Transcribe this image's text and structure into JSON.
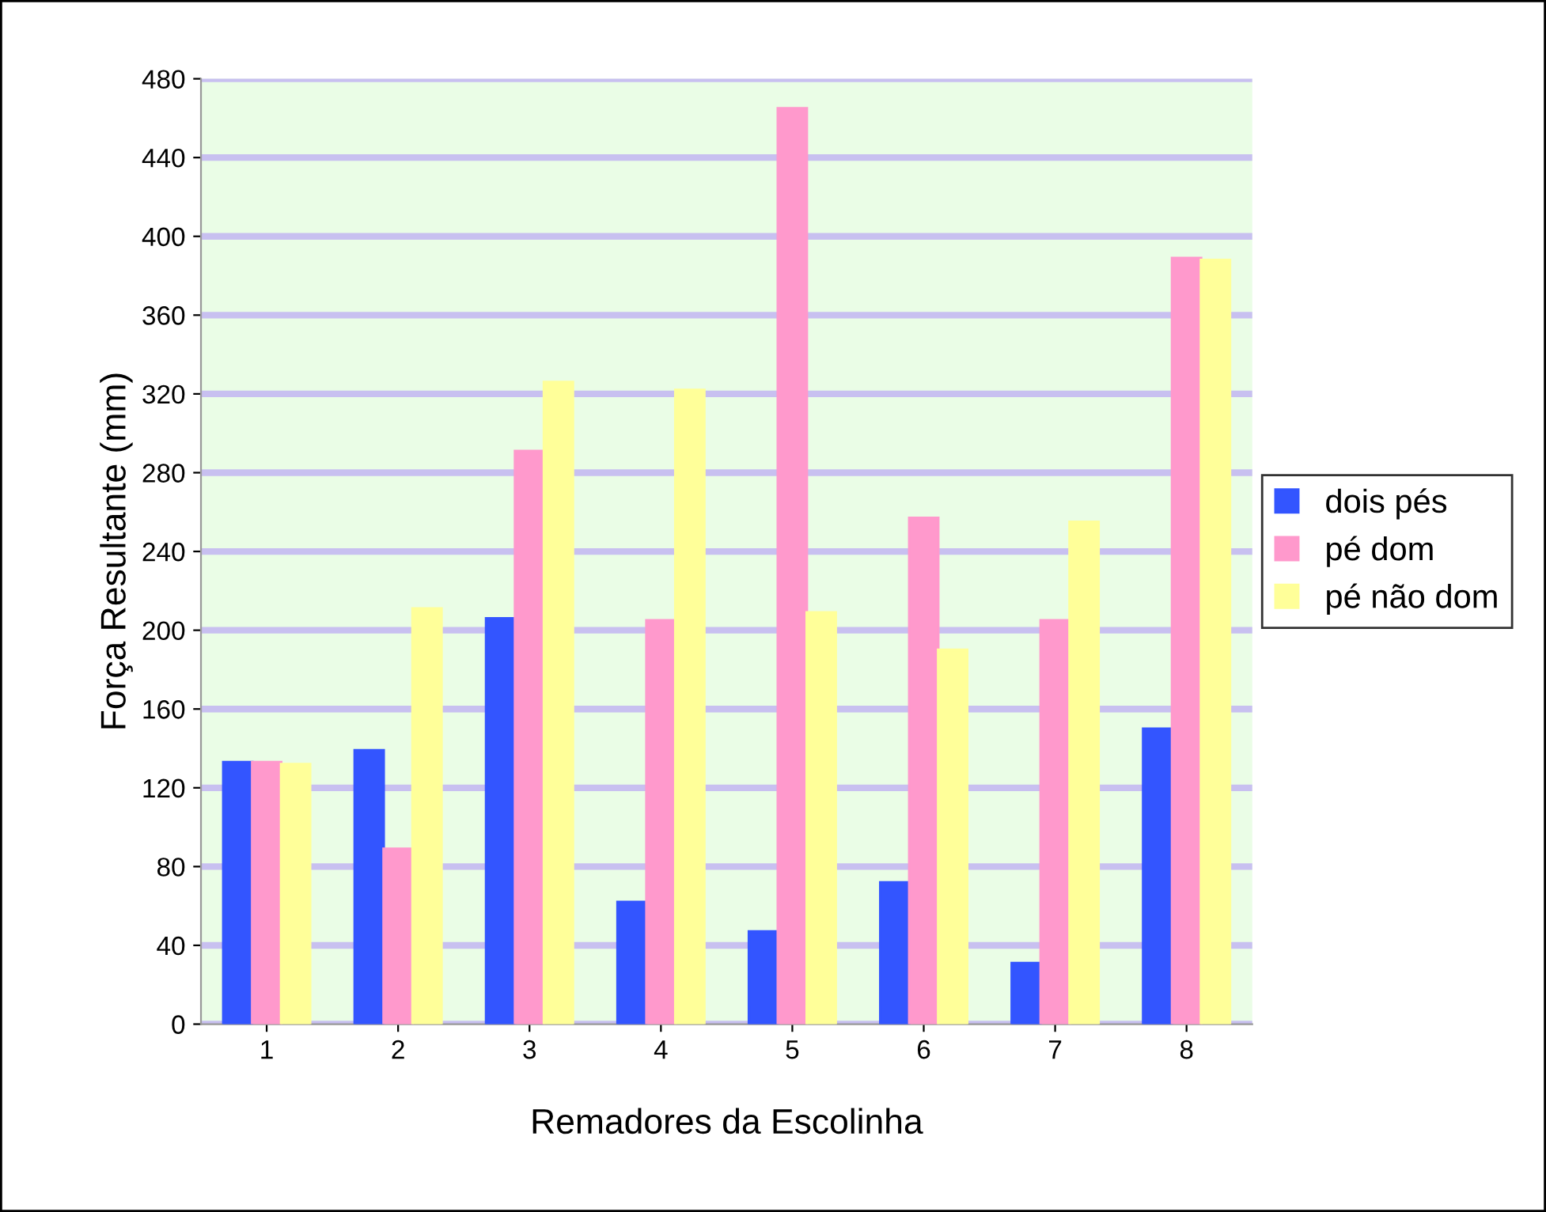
{
  "chart_data": {
    "type": "bar",
    "xlabel": "Remadores da Escolinha",
    "ylabel": "Força Resultante (mm)",
    "categories": [
      "1",
      "2",
      "3",
      "4",
      "5",
      "6",
      "7",
      "8"
    ],
    "series": [
      {
        "name": "dois pés",
        "color": "#3355ff",
        "values": [
          133,
          139,
          206,
          62,
          47,
          72,
          31,
          150
        ]
      },
      {
        "name": "pé dom",
        "color": "#ff99cc",
        "values": [
          133,
          89,
          291,
          205,
          465,
          257,
          205,
          389
        ]
      },
      {
        "name": "pé não dom",
        "color": "#ffff99",
        "values": [
          132,
          211,
          326,
          322,
          209,
          190,
          255,
          388
        ]
      }
    ],
    "ylim": [
      0,
      480
    ],
    "yticks": [
      0,
      40,
      80,
      120,
      160,
      200,
      240,
      280,
      320,
      360,
      400,
      440,
      480
    ],
    "grid": "y",
    "legend": "right"
  }
}
